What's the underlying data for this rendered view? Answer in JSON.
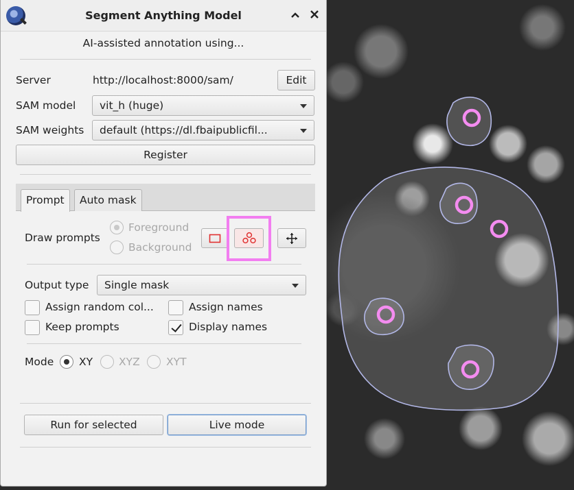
{
  "window": {
    "title": "Segment Anything Model",
    "subtitle": "AI-assisted annotation using...",
    "collapse_symbol": "^",
    "close_symbol": "✕"
  },
  "server": {
    "label": "Server",
    "url": "http://localhost:8000/sam/",
    "edit_label": "Edit"
  },
  "sam_model": {
    "label": "SAM model",
    "value": "vit_h (huge)"
  },
  "sam_weights": {
    "label": "SAM weights",
    "value": "default (https://dl.fbaipublicfil..."
  },
  "register_label": "Register",
  "tabs": [
    {
      "label": "Prompt",
      "active": true
    },
    {
      "label": "Auto mask",
      "active": false
    }
  ],
  "draw_prompts": {
    "label": "Draw prompts",
    "foreground_label": "Foreground",
    "background_label": "Background",
    "selected": "Foreground",
    "enabled": false
  },
  "output_type": {
    "label": "Output type",
    "value": "Single mask"
  },
  "options": {
    "assign_random_colors": {
      "label": "Assign random col...",
      "checked": false
    },
    "assign_names": {
      "label": "Assign names",
      "checked": false
    },
    "keep_prompts": {
      "label": "Keep prompts",
      "checked": false
    },
    "display_names": {
      "label": "Display names",
      "checked": true
    }
  },
  "mode": {
    "label": "Mode",
    "options": [
      "XY",
      "XYZ",
      "XYT"
    ],
    "selected": "XY"
  },
  "run_for_selected_label": "Run for selected",
  "live_mode_label": "Live mode",
  "colors": {
    "highlight": "#f27ef0",
    "prompt_point": "#f48cf0",
    "contour": "#b3b8e8",
    "tool_red": "#e03030"
  },
  "icons": {
    "app": "sam-app-icon",
    "rectangle_tool": "rectangle-prompt-icon",
    "points_tool": "point-prompt-icon",
    "move_tool": "move-icon"
  }
}
